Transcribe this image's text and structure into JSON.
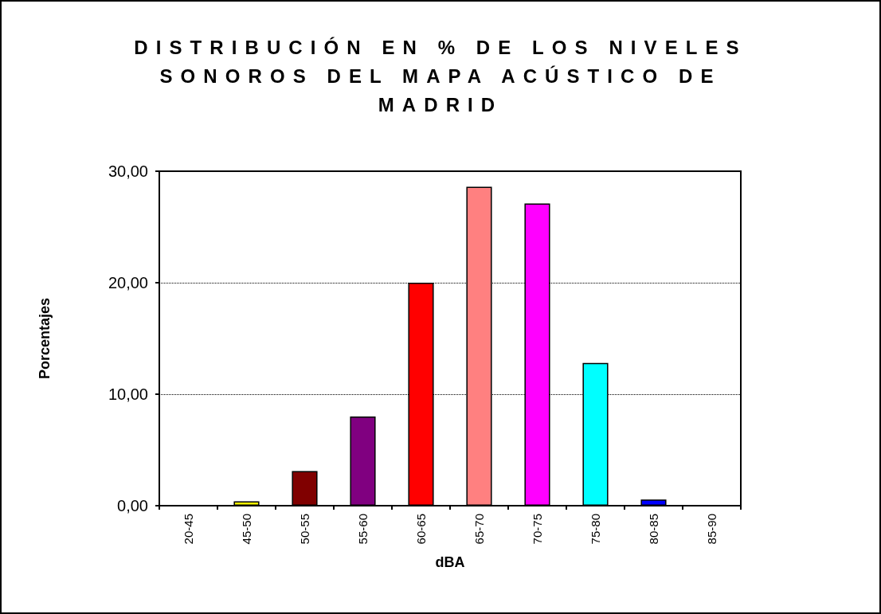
{
  "chart_data": {
    "type": "bar",
    "title": "DISTRIBUCIÓN EN % DE LOS NIVELES SONOROS DEL MAPA ACÚSTICO DE MADRID",
    "xlabel": "dBA",
    "ylabel": "Porcentajes",
    "categories": [
      "20-45",
      "45-50",
      "50-55",
      "55-60",
      "60-65",
      "65-70",
      "70-75",
      "75-80",
      "80-85",
      "85-90"
    ],
    "values": [
      0,
      0.4,
      3.1,
      8.0,
      20.0,
      28.6,
      27.1,
      12.8,
      0.55,
      0
    ],
    "colors": [
      null,
      "#ffff00",
      "#800000",
      "#800080",
      "#ff0000",
      "#ff8080",
      "#ff00ff",
      "#00ffff",
      "#0000ff",
      null
    ],
    "ylim": [
      0,
      30
    ],
    "yticks": [
      {
        "value": 0,
        "label": "0,00"
      },
      {
        "value": 10,
        "label": "10,00"
      },
      {
        "value": 20,
        "label": "20,00"
      },
      {
        "value": 30,
        "label": "30,00"
      }
    ],
    "grid": "y"
  }
}
